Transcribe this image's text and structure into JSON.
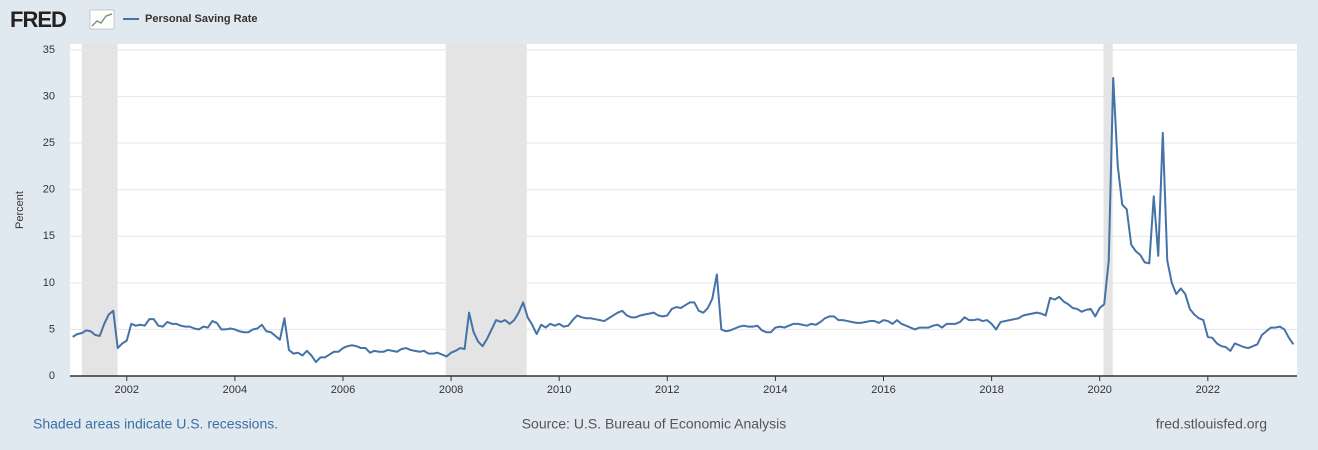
{
  "chart_data": {
    "type": "line",
    "logo": "FRED",
    "ylabel": "Percent",
    "series": [
      {
        "name": "Personal Saving Rate",
        "color": "#4572a7",
        "values": [
          4.2,
          4.5,
          4.6,
          4.9,
          4.8,
          4.4,
          4.3,
          5.6,
          6.6,
          7.0,
          3.0,
          3.5,
          3.8,
          5.6,
          5.4,
          5.5,
          5.4,
          6.1,
          6.1,
          5.4,
          5.3,
          5.8,
          5.6,
          5.6,
          5.4,
          5.3,
          5.3,
          5.1,
          5.0,
          5.3,
          5.2,
          5.9,
          5.7,
          5.0,
          5.0,
          5.1,
          5.0,
          4.8,
          4.7,
          4.7,
          5.0,
          5.1,
          5.5,
          4.8,
          4.7,
          4.3,
          3.9,
          6.2,
          2.8,
          2.4,
          2.5,
          2.2,
          2.7,
          2.2,
          1.5,
          2.0,
          2.0,
          2.3,
          2.6,
          2.6,
          3.0,
          3.2,
          3.3,
          3.2,
          3.0,
          3.0,
          2.5,
          2.7,
          2.6,
          2.6,
          2.8,
          2.7,
          2.6,
          2.9,
          3.0,
          2.8,
          2.7,
          2.6,
          2.7,
          2.4,
          2.4,
          2.5,
          2.3,
          2.1,
          2.5,
          2.7,
          3.0,
          2.9,
          6.8,
          4.7,
          3.7,
          3.2,
          4.0,
          5.0,
          6.0,
          5.8,
          6.0,
          5.6,
          6.0,
          6.8,
          7.9,
          6.3,
          5.5,
          4.5,
          5.5,
          5.2,
          5.6,
          5.4,
          5.6,
          5.3,
          5.4,
          6.0,
          6.5,
          6.3,
          6.2,
          6.2,
          6.1,
          6.0,
          5.9,
          6.2,
          6.5,
          6.8,
          7.0,
          6.5,
          6.3,
          6.3,
          6.5,
          6.6,
          6.7,
          6.8,
          6.5,
          6.4,
          6.5,
          7.2,
          7.4,
          7.3,
          7.6,
          7.9,
          7.9,
          7.0,
          6.8,
          7.3,
          8.3,
          10.9,
          5.0,
          4.8,
          4.9,
          5.1,
          5.3,
          5.4,
          5.3,
          5.3,
          5.4,
          4.9,
          4.7,
          4.7,
          5.2,
          5.3,
          5.2,
          5.4,
          5.6,
          5.6,
          5.5,
          5.4,
          5.6,
          5.5,
          5.8,
          6.2,
          6.4,
          6.4,
          6.0,
          6.0,
          5.9,
          5.8,
          5.7,
          5.7,
          5.8,
          5.9,
          5.9,
          5.7,
          6.0,
          5.9,
          5.6,
          6.0,
          5.6,
          5.4,
          5.2,
          5.0,
          5.2,
          5.2,
          5.2,
          5.4,
          5.5,
          5.2,
          5.6,
          5.6,
          5.6,
          5.8,
          6.3,
          6.0,
          6.0,
          6.1,
          5.9,
          6.0,
          5.6,
          5.0,
          5.8,
          5.9,
          6.0,
          6.1,
          6.2,
          6.5,
          6.6,
          6.7,
          6.8,
          6.7,
          6.5,
          8.4,
          8.2,
          8.5,
          8.0,
          7.7,
          7.3,
          7.2,
          6.9,
          7.1,
          7.2,
          6.4,
          7.3,
          7.7,
          12.4,
          32.0,
          22.6,
          18.4,
          17.9,
          14.1,
          13.4,
          13.0,
          12.2,
          12.1,
          19.3,
          12.9,
          26.1,
          12.4,
          10.0,
          8.8,
          9.4,
          8.8,
          7.2,
          6.6,
          6.2,
          6.0,
          4.2,
          4.1,
          3.5,
          3.2,
          3.1,
          2.7,
          3.5,
          3.3,
          3.1,
          3.0,
          3.2,
          3.4,
          4.4,
          4.8,
          5.2,
          5.2,
          5.3,
          5.0,
          4.1,
          3.4
        ]
      }
    ],
    "x": [
      2001.0,
      2001.083,
      2001.167,
      2001.25,
      2001.333,
      2001.417,
      2001.5,
      2001.583,
      2001.667,
      2001.75,
      2001.833,
      2001.917,
      2002.0,
      2002.083,
      2002.167,
      2002.25,
      2002.333,
      2002.417,
      2002.5,
      2002.583,
      2002.667,
      2002.75,
      2002.833,
      2002.917,
      2003.0,
      2003.083,
      2003.167,
      2003.25,
      2003.333,
      2003.417,
      2003.5,
      2003.583,
      2003.667,
      2003.75,
      2003.833,
      2003.917,
      2004.0,
      2004.083,
      2004.167,
      2004.25,
      2004.333,
      2004.417,
      2004.5,
      2004.583,
      2004.667,
      2004.75,
      2004.833,
      2004.917,
      2005.0,
      2005.083,
      2005.167,
      2005.25,
      2005.333,
      2005.417,
      2005.5,
      2005.583,
      2005.667,
      2005.75,
      2005.833,
      2005.917,
      2006.0,
      2006.083,
      2006.167,
      2006.25,
      2006.333,
      2006.417,
      2006.5,
      2006.583,
      2006.667,
      2006.75,
      2006.833,
      2006.917,
      2007.0,
      2007.083,
      2007.167,
      2007.25,
      2007.333,
      2007.417,
      2007.5,
      2007.583,
      2007.667,
      2007.75,
      2007.833,
      2007.917,
      2008.0,
      2008.083,
      2008.167,
      2008.25,
      2008.333,
      2008.417,
      2008.5,
      2008.583,
      2008.667,
      2008.75,
      2008.833,
      2008.917,
      2009.0,
      2009.083,
      2009.167,
      2009.25,
      2009.333,
      2009.417,
      2009.5,
      2009.583,
      2009.667,
      2009.75,
      2009.833,
      2009.917,
      2010.0,
      2010.083,
      2010.167,
      2010.25,
      2010.333,
      2010.417,
      2010.5,
      2010.583,
      2010.667,
      2010.75,
      2010.833,
      2010.917,
      2011.0,
      2011.083,
      2011.167,
      2011.25,
      2011.333,
      2011.417,
      2011.5,
      2011.583,
      2011.667,
      2011.75,
      2011.833,
      2011.917,
      2012.0,
      2012.083,
      2012.167,
      2012.25,
      2012.333,
      2012.417,
      2012.5,
      2012.583,
      2012.667,
      2012.75,
      2012.833,
      2012.917,
      2013.0,
      2013.083,
      2013.167,
      2013.25,
      2013.333,
      2013.417,
      2013.5,
      2013.583,
      2013.667,
      2013.75,
      2013.833,
      2013.917,
      2014.0,
      2014.083,
      2014.167,
      2014.25,
      2014.333,
      2014.417,
      2014.5,
      2014.583,
      2014.667,
      2014.75,
      2014.833,
      2014.917,
      2015.0,
      2015.083,
      2015.167,
      2015.25,
      2015.333,
      2015.417,
      2015.5,
      2015.583,
      2015.667,
      2015.75,
      2015.833,
      2015.917,
      2016.0,
      2016.083,
      2016.167,
      2016.25,
      2016.333,
      2016.417,
      2016.5,
      2016.583,
      2016.667,
      2016.75,
      2016.833,
      2016.917,
      2017.0,
      2017.083,
      2017.167,
      2017.25,
      2017.333,
      2017.417,
      2017.5,
      2017.583,
      2017.667,
      2017.75,
      2017.833,
      2017.917,
      2018.0,
      2018.083,
      2018.167,
      2018.25,
      2018.333,
      2018.417,
      2018.5,
      2018.583,
      2018.667,
      2018.75,
      2018.833,
      2018.917,
      2019.0,
      2019.083,
      2019.167,
      2019.25,
      2019.333,
      2019.417,
      2019.5,
      2019.583,
      2019.667,
      2019.75,
      2019.833,
      2019.917,
      2020.0,
      2020.083,
      2020.167,
      2020.25,
      2020.333,
      2020.417,
      2020.5,
      2020.583,
      2020.667,
      2020.75,
      2020.833,
      2020.917,
      2021.0,
      2021.083,
      2021.167,
      2021.25,
      2021.333,
      2021.417,
      2021.5,
      2021.583,
      2021.667,
      2021.75,
      2021.833,
      2021.917,
      2022.0,
      2022.083,
      2022.167,
      2022.25,
      2022.333,
      2022.417,
      2022.5,
      2022.583,
      2022.667,
      2022.75,
      2022.833,
      2022.917,
      2023.0,
      2023.083,
      2023.167,
      2023.25,
      2023.333,
      2023.417,
      2023.5,
      2023.583
    ],
    "recessions": [
      [
        2001.17,
        2001.83
      ],
      [
        2007.9,
        2009.4
      ],
      [
        2020.07,
        2020.24
      ]
    ],
    "xlim": [
      2000.95,
      2023.65
    ],
    "xticks": [
      2002,
      2004,
      2006,
      2008,
      2010,
      2012,
      2014,
      2016,
      2018,
      2020,
      2022
    ],
    "ylim": [
      0,
      35
    ],
    "yticks": [
      0,
      5,
      10,
      15,
      20,
      25,
      30,
      35
    ],
    "grid": true,
    "recession_note": "Shaded areas indicate U.S. recessions.",
    "source": "Source: U.S. Bureau of Economic Analysis",
    "site": "fred.stlouisfed.org"
  }
}
